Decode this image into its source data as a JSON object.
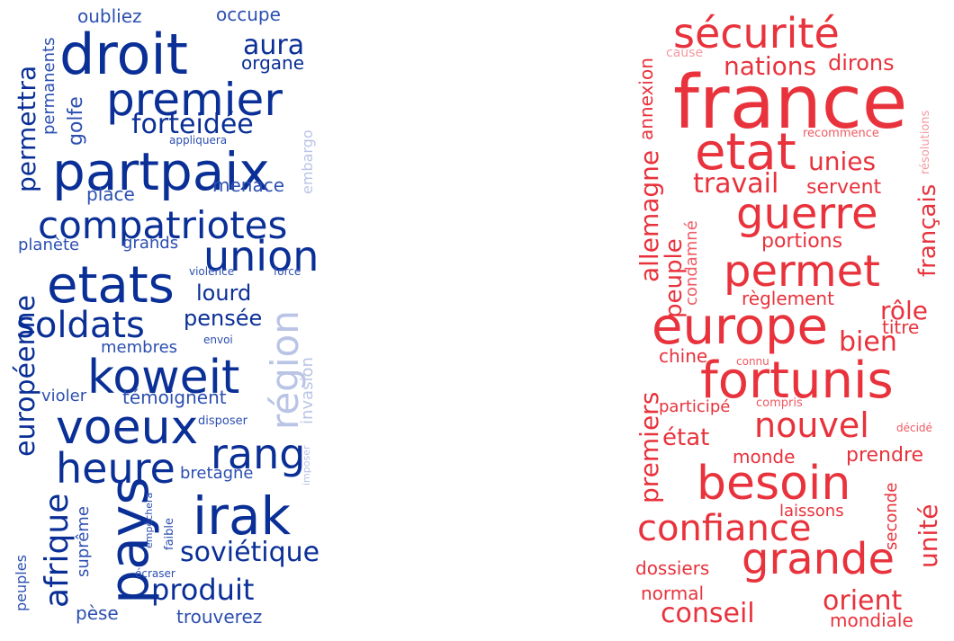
{
  "clouds": {
    "left": {
      "colors": {
        "strong": "#0a2f96",
        "mid": "#2c4fb0",
        "light": "#b9c4e6"
      },
      "words": [
        "droit",
        "premier",
        "partpaix",
        "compatriotes",
        "etats",
        "union",
        "koweit",
        "voeux",
        "irak",
        "pays",
        "heure",
        "rang",
        "soldats",
        "région",
        "afrique",
        "européenne",
        "aura",
        "forteidée",
        "produit",
        "soviétique",
        "permettra",
        "lourd",
        "pensée",
        "organe",
        "oubliez",
        "occupe",
        "golfe",
        "permanents",
        "place",
        "menace",
        "planète",
        "grands",
        "bretagne",
        "témoignent",
        "membres",
        "violer",
        "trouverez",
        "pèse",
        "suprême",
        "peuples",
        "invasion",
        "embargo",
        "appliquera",
        "violence",
        "force",
        "envoi",
        "disposer",
        "imposer",
        "faible",
        "empêchera",
        "écraser"
      ]
    },
    "right": {
      "colors": {
        "strong": "#e8323c",
        "mid": "#ee5a62",
        "light": "#f49aa0"
      },
      "words": [
        "sécurité",
        "france",
        "etat",
        "guerre",
        "permet",
        "europe",
        "fortunis",
        "besoin",
        "grande",
        "confiance",
        "nouvel",
        "nations",
        "dirons",
        "unies",
        "travail",
        "servent",
        "portions",
        "allemagne",
        "français",
        "peuple",
        "annexion",
        "rôle",
        "règlement",
        "bien",
        "titre",
        "chine",
        "connu",
        "premiers",
        "état",
        "unité",
        "prendre",
        "monde",
        "seconde",
        "laissons",
        "dossiers",
        "normal",
        "conseil",
        "orient",
        "mondiale",
        "participé",
        "compris",
        "décidé",
        "condamné",
        "recommence",
        "résolutions",
        "cause"
      ]
    }
  }
}
